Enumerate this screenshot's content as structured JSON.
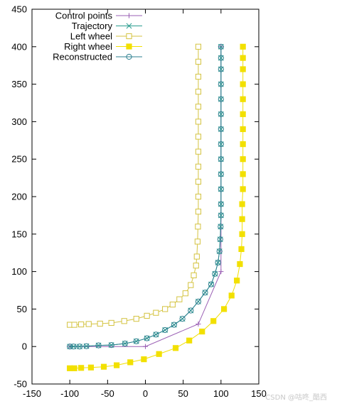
{
  "chart_data": {
    "type": "line",
    "title": "",
    "xlabel": "",
    "ylabel": "",
    "xlim": [
      -150,
      150
    ],
    "ylim": [
      -50,
      450
    ],
    "xticks": [
      -150,
      -100,
      -50,
      0,
      50,
      100,
      150
    ],
    "yticks": [
      -50,
      0,
      50,
      100,
      150,
      200,
      250,
      300,
      350,
      400,
      450
    ],
    "grid": false,
    "legend_position": "top-left",
    "series": [
      {
        "name": "Control points",
        "color": "#9a5fb4",
        "marker": "plus",
        "line": true,
        "points": [
          [
            -100,
            0
          ],
          [
            0,
            0
          ],
          [
            70,
            30
          ],
          [
            100,
            100
          ],
          [
            100,
            400
          ]
        ]
      },
      {
        "name": "Trajectory",
        "color": "#2a9d8f",
        "marker": "x",
        "line": true,
        "points": [
          [
            -100,
            0
          ],
          [
            -95,
            0
          ],
          [
            -87,
            0
          ],
          [
            -78,
            0.5
          ],
          [
            -62,
            1.5
          ],
          [
            -45,
            2
          ],
          [
            -27,
            4
          ],
          [
            -12,
            7
          ],
          [
            2,
            11
          ],
          [
            14,
            16
          ],
          [
            26,
            22
          ],
          [
            38,
            29
          ],
          [
            49,
            37
          ],
          [
            60,
            48
          ],
          [
            70,
            60
          ],
          [
            79,
            72
          ],
          [
            87,
            83
          ],
          [
            92,
            97
          ],
          [
            96,
            112
          ],
          [
            98,
            127
          ],
          [
            99,
            143
          ],
          [
            99.5,
            160
          ],
          [
            100,
            175
          ],
          [
            100,
            190
          ],
          [
            100,
            210
          ],
          [
            100,
            230
          ],
          [
            100,
            250
          ],
          [
            100,
            270
          ],
          [
            100,
            290
          ],
          [
            100,
            310
          ],
          [
            100,
            330
          ],
          [
            100,
            350
          ],
          [
            100,
            370
          ],
          [
            100,
            385
          ],
          [
            100,
            400
          ]
        ]
      },
      {
        "name": "Left wheel",
        "color": "#d4c340",
        "marker": "square-open",
        "line": true,
        "points": [
          [
            -100,
            29
          ],
          [
            -94,
            29
          ],
          [
            -85,
            29.5
          ],
          [
            -75,
            30
          ],
          [
            -60,
            30.5
          ],
          [
            -45,
            31.5
          ],
          [
            -28,
            34
          ],
          [
            -12,
            37
          ],
          [
            2,
            41
          ],
          [
            14,
            45
          ],
          [
            26,
            50
          ],
          [
            36,
            56
          ],
          [
            45,
            63
          ],
          [
            53,
            71
          ],
          [
            60,
            82
          ],
          [
            64,
            95
          ],
          [
            67,
            108
          ],
          [
            68,
            120
          ],
          [
            69,
            140
          ],
          [
            69.5,
            160
          ],
          [
            70,
            180
          ],
          [
            70,
            200
          ],
          [
            70,
            220
          ],
          [
            70,
            240
          ],
          [
            70,
            260
          ],
          [
            70,
            280
          ],
          [
            70,
            300
          ],
          [
            70,
            320
          ],
          [
            70,
            340
          ],
          [
            70,
            360
          ],
          [
            70,
            380
          ],
          [
            70,
            400
          ]
        ]
      },
      {
        "name": "Right wheel",
        "color": "#f2e000",
        "marker": "square-filled",
        "line": true,
        "points": [
          [
            -100,
            -29
          ],
          [
            -94,
            -29
          ],
          [
            -85,
            -28.5
          ],
          [
            -72,
            -28
          ],
          [
            -55,
            -27
          ],
          [
            -38,
            -25
          ],
          [
            -20,
            -21
          ],
          [
            -2,
            -17
          ],
          [
            18,
            -10
          ],
          [
            40,
            -2
          ],
          [
            58,
            8
          ],
          [
            75,
            20
          ],
          [
            90,
            34
          ],
          [
            104,
            50
          ],
          [
            114,
            68
          ],
          [
            121,
            88
          ],
          [
            125,
            110
          ],
          [
            127,
            130
          ],
          [
            128,
            150
          ],
          [
            128,
            170
          ],
          [
            128,
            190
          ],
          [
            129,
            210
          ],
          [
            129,
            230
          ],
          [
            129,
            250
          ],
          [
            129,
            270
          ],
          [
            129,
            290
          ],
          [
            129,
            310
          ],
          [
            129,
            330
          ],
          [
            129,
            350
          ],
          [
            129,
            370
          ],
          [
            129,
            385
          ],
          [
            129,
            400
          ]
        ]
      },
      {
        "name": "Reconstructed",
        "color": "#2e8090",
        "marker": "circle-open",
        "line": true,
        "points": [
          [
            -100,
            0
          ],
          [
            -95,
            0
          ],
          [
            -87,
            0
          ],
          [
            -78,
            0.5
          ],
          [
            -62,
            1.5
          ],
          [
            -45,
            2
          ],
          [
            -27,
            4
          ],
          [
            -12,
            7
          ],
          [
            2,
            11
          ],
          [
            14,
            16
          ],
          [
            26,
            22
          ],
          [
            38,
            29
          ],
          [
            49,
            37
          ],
          [
            60,
            48
          ],
          [
            70,
            60
          ],
          [
            79,
            72
          ],
          [
            87,
            83
          ],
          [
            92,
            97
          ],
          [
            96,
            112
          ],
          [
            98,
            127
          ],
          [
            99,
            143
          ],
          [
            99.5,
            160
          ],
          [
            100,
            175
          ],
          [
            100,
            190
          ],
          [
            100,
            210
          ],
          [
            100,
            230
          ],
          [
            100,
            250
          ],
          [
            100,
            270
          ],
          [
            100,
            290
          ],
          [
            100,
            310
          ],
          [
            100,
            330
          ],
          [
            100,
            350
          ],
          [
            100,
            370
          ],
          [
            100,
            385
          ],
          [
            100,
            400
          ]
        ]
      }
    ]
  },
  "watermark": "CSDN @咕咚_酷西"
}
